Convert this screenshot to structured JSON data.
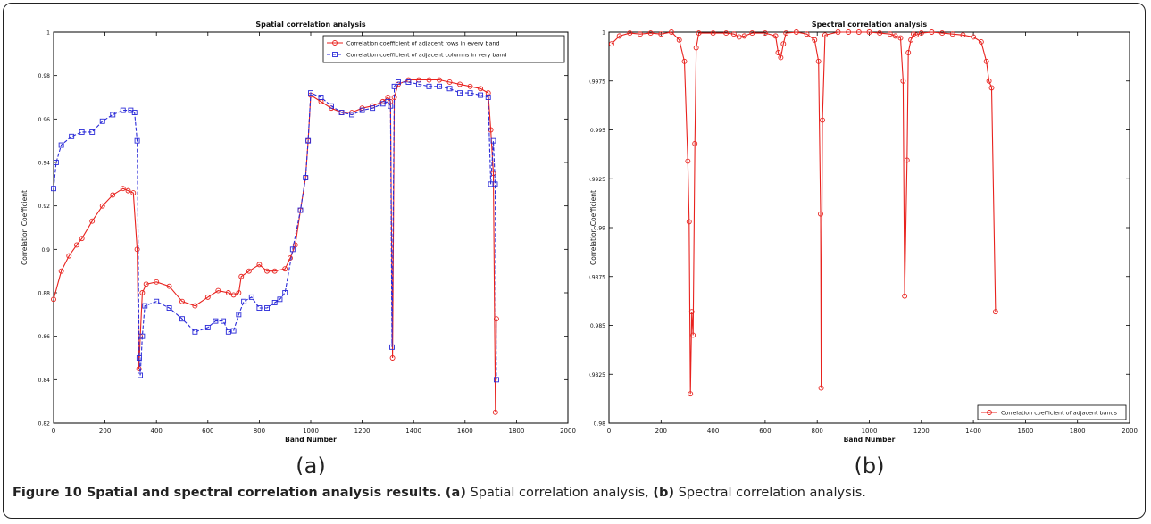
{
  "caption": {
    "lead": "Figure 10 Spatial and spectral correlation analysis results.",
    "part_a_label": "(a)",
    "part_a_text": " Spatial correlation analysis, ",
    "part_b_label": "(b)",
    "part_b_text": " Spectral correlation analysis."
  },
  "chart_data": [
    {
      "type": "line",
      "panel_label": "(a)",
      "title": "Spatial correlation analysis",
      "xlabel": "Band Number",
      "ylabel": "Correlation Coefficient",
      "xlim": [
        0,
        2000
      ],
      "ylim": [
        0.82,
        1.0
      ],
      "xticks": [
        "0",
        "200",
        "400",
        "600",
        "800",
        "1000",
        "1200",
        "1400",
        "1600",
        "1800",
        "2000"
      ],
      "yticks": [
        "0.82",
        "0.84",
        "0.86",
        "0.88",
        "0.9",
        "0.92",
        "0.94",
        "0.96",
        "0.98",
        "1"
      ],
      "legend_position": "top-right",
      "series": [
        {
          "name": "Correlation coefficient of adjacent rows in every band",
          "color": "#e8221e",
          "marker": "circle",
          "points": [
            [
              0,
              0.877
            ],
            [
              30,
              0.89
            ],
            [
              60,
              0.897
            ],
            [
              90,
              0.902
            ],
            [
              110,
              0.905
            ],
            [
              150,
              0.913
            ],
            [
              190,
              0.92
            ],
            [
              230,
              0.925
            ],
            [
              270,
              0.928
            ],
            [
              290,
              0.927
            ],
            [
              310,
              0.926
            ],
            [
              325,
              0.9
            ],
            [
              332,
              0.845
            ],
            [
              337,
              0.86
            ],
            [
              345,
              0.88
            ],
            [
              360,
              0.884
            ],
            [
              400,
              0.885
            ],
            [
              450,
              0.883
            ],
            [
              500,
              0.876
            ],
            [
              550,
              0.874
            ],
            [
              600,
              0.878
            ],
            [
              640,
              0.881
            ],
            [
              680,
              0.88
            ],
            [
              700,
              0.879
            ],
            [
              720,
              0.88
            ],
            [
              730,
              0.8875
            ],
            [
              760,
              0.89
            ],
            [
              800,
              0.893
            ],
            [
              830,
              0.89
            ],
            [
              860,
              0.89
            ],
            [
              900,
              0.891
            ],
            [
              920,
              0.896
            ],
            [
              940,
              0.902
            ],
            [
              960,
              0.918
            ],
            [
              980,
              0.933
            ],
            [
              990,
              0.95
            ],
            [
              1000,
              0.971
            ],
            [
              1040,
              0.968
            ],
            [
              1080,
              0.965
            ],
            [
              1120,
              0.963
            ],
            [
              1160,
              0.963
            ],
            [
              1200,
              0.965
            ],
            [
              1240,
              0.966
            ],
            [
              1280,
              0.968
            ],
            [
              1300,
              0.97
            ],
            [
              1310,
              0.968
            ],
            [
              1318,
              0.85
            ],
            [
              1325,
              0.97
            ],
            [
              1340,
              0.976
            ],
            [
              1380,
              0.978
            ],
            [
              1420,
              0.978
            ],
            [
              1460,
              0.978
            ],
            [
              1500,
              0.978
            ],
            [
              1540,
              0.977
            ],
            [
              1580,
              0.976
            ],
            [
              1620,
              0.975
            ],
            [
              1660,
              0.974
            ],
            [
              1690,
              0.972
            ],
            [
              1700,
              0.955
            ],
            [
              1710,
              0.935
            ],
            [
              1718,
              0.825
            ],
            [
              1722,
              0.868
            ]
          ]
        },
        {
          "name": "Correlation coefficient of adjacent columns in very band",
          "color": "#2a2ad8",
          "marker": "square",
          "points": [
            [
              0,
              0.928
            ],
            [
              10,
              0.94
            ],
            [
              30,
              0.948
            ],
            [
              70,
              0.952
            ],
            [
              110,
              0.954
            ],
            [
              150,
              0.954
            ],
            [
              190,
              0.959
            ],
            [
              230,
              0.962
            ],
            [
              270,
              0.964
            ],
            [
              300,
              0.964
            ],
            [
              315,
              0.963
            ],
            [
              325,
              0.95
            ],
            [
              333,
              0.85
            ],
            [
              337,
              0.842
            ],
            [
              345,
              0.86
            ],
            [
              355,
              0.874
            ],
            [
              400,
              0.876
            ],
            [
              450,
              0.873
            ],
            [
              500,
              0.868
            ],
            [
              550,
              0.862
            ],
            [
              600,
              0.864
            ],
            [
              630,
              0.867
            ],
            [
              660,
              0.867
            ],
            [
              680,
              0.862
            ],
            [
              700,
              0.8625
            ],
            [
              720,
              0.87
            ],
            [
              740,
              0.876
            ],
            [
              770,
              0.878
            ],
            [
              800,
              0.873
            ],
            [
              830,
              0.873
            ],
            [
              860,
              0.8755
            ],
            [
              880,
              0.877
            ],
            [
              900,
              0.88
            ],
            [
              930,
              0.9
            ],
            [
              960,
              0.918
            ],
            [
              980,
              0.933
            ],
            [
              990,
              0.95
            ],
            [
              1000,
              0.972
            ],
            [
              1040,
              0.97
            ],
            [
              1080,
              0.966
            ],
            [
              1120,
              0.963
            ],
            [
              1160,
              0.962
            ],
            [
              1200,
              0.964
            ],
            [
              1240,
              0.965
            ],
            [
              1280,
              0.967
            ],
            [
              1300,
              0.968
            ],
            [
              1310,
              0.966
            ],
            [
              1316,
              0.855
            ],
            [
              1325,
              0.975
            ],
            [
              1340,
              0.977
            ],
            [
              1380,
              0.977
            ],
            [
              1420,
              0.976
            ],
            [
              1460,
              0.975
            ],
            [
              1500,
              0.975
            ],
            [
              1540,
              0.974
            ],
            [
              1580,
              0.972
            ],
            [
              1620,
              0.972
            ],
            [
              1660,
              0.971
            ],
            [
              1690,
              0.97
            ],
            [
              1700,
              0.93
            ],
            [
              1710,
              0.95
            ],
            [
              1717,
              0.93
            ],
            [
              1722,
              0.84
            ]
          ]
        }
      ]
    },
    {
      "type": "line",
      "panel_label": "(b)",
      "title": "Spectral correlation analysis",
      "xlabel": "Band Number",
      "ylabel": "Correlation Coefficient",
      "xlim": [
        0,
        2000
      ],
      "ylim": [
        0.98,
        1.0
      ],
      "xticks": [
        "0",
        "200",
        "400",
        "600",
        "800",
        "1000",
        "1200",
        "1400",
        "1600",
        "1800",
        "2000"
      ],
      "yticks": [
        "0.98",
        "0.9825",
        "0.985",
        "0.9875",
        "0.99",
        "0.9925",
        "0.995",
        "0.9975",
        "1"
      ],
      "legend_position": "bottom-right",
      "series": [
        {
          "name": "Correlation coefficient of adjacent bands",
          "color": "#e8221e",
          "marker": "circle",
          "points": [
            [
              10,
              0.9994
            ],
            [
              40,
              0.9998
            ],
            [
              80,
              0.99995
            ],
            [
              120,
              0.9999
            ],
            [
              160,
              0.99995
            ],
            [
              200,
              0.9999
            ],
            [
              240,
              1.0
            ],
            [
              270,
              0.9996
            ],
            [
              290,
              0.9985
            ],
            [
              303,
              0.9934
            ],
            [
              308,
              0.9903
            ],
            [
              313,
              0.9815
            ],
            [
              318,
              0.9857
            ],
            [
              323,
              0.9845
            ],
            [
              330,
              0.9943
            ],
            [
              335,
              0.9992
            ],
            [
              345,
              0.99995
            ],
            [
              400,
              0.99995
            ],
            [
              450,
              0.99995
            ],
            [
              480,
              0.9999
            ],
            [
              500,
              0.99975
            ],
            [
              520,
              0.9998
            ],
            [
              550,
              0.99995
            ],
            [
              600,
              0.99995
            ],
            [
              640,
              0.9998
            ],
            [
              650,
              0.99895
            ],
            [
              660,
              0.9987
            ],
            [
              670,
              0.9994
            ],
            [
              680,
              0.99995
            ],
            [
              720,
              1.0
            ],
            [
              760,
              0.9999
            ],
            [
              790,
              0.9996
            ],
            [
              805,
              0.9985
            ],
            [
              813,
              0.9907
            ],
            [
              815,
              0.9818
            ],
            [
              820,
              0.9955
            ],
            [
              830,
              0.99985
            ],
            [
              880,
              1.0
            ],
            [
              920,
              1.0
            ],
            [
              960,
              1.0
            ],
            [
              1000,
              1.0
            ],
            [
              1040,
              0.99995
            ],
            [
              1080,
              0.9999
            ],
            [
              1100,
              0.9998
            ],
            [
              1120,
              0.9997
            ],
            [
              1130,
              0.9975
            ],
            [
              1136,
              0.9865
            ],
            [
              1145,
              0.99345
            ],
            [
              1150,
              0.99895
            ],
            [
              1160,
              0.9996
            ],
            [
              1170,
              0.9999
            ],
            [
              1180,
              0.99985
            ],
            [
              1200,
              0.99995
            ],
            [
              1240,
              1.0
            ],
            [
              1280,
              0.99995
            ],
            [
              1320,
              0.9999
            ],
            [
              1360,
              0.99985
            ],
            [
              1400,
              0.99975
            ],
            [
              1430,
              0.9995
            ],
            [
              1450,
              0.9985
            ],
            [
              1460,
              0.9975
            ],
            [
              1470,
              0.99715
            ],
            [
              1485,
              0.9857
            ]
          ]
        }
      ]
    }
  ]
}
